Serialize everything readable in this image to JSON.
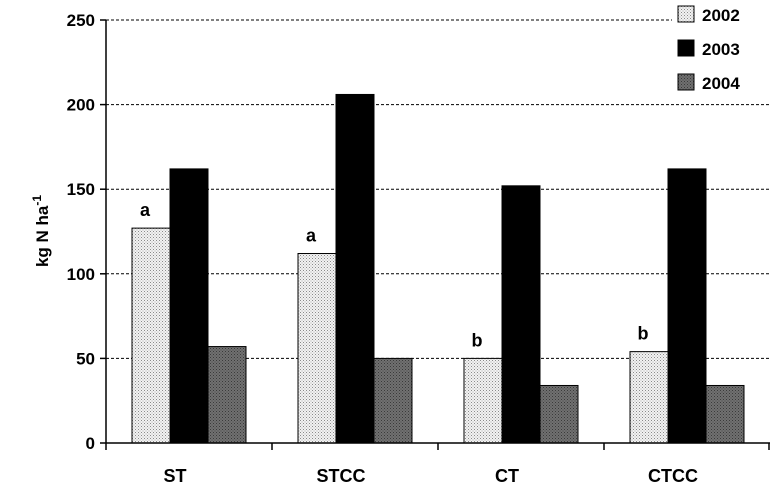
{
  "chart_data": {
    "type": "bar",
    "categories": [
      "ST",
      "STCC",
      "CT",
      "CTCC"
    ],
    "series": [
      {
        "name": "2002",
        "values": [
          127,
          112,
          50,
          54
        ],
        "pattern": "dotted-light"
      },
      {
        "name": "2003",
        "values": [
          162,
          206,
          152,
          162
        ],
        "pattern": "solid-black"
      },
      {
        "name": "2004",
        "values": [
          57,
          50,
          34,
          34
        ],
        "pattern": "dotted-dark"
      }
    ],
    "annotations": [
      "a",
      "a",
      "b",
      "b"
    ],
    "ylabel": "kg N ha",
    "ylabel_superscript": "-1",
    "ylim": [
      0,
      250
    ],
    "yticks": [
      "0",
      "50",
      "100",
      "150",
      "200",
      "250"
    ],
    "grid": "horizontal-dashed",
    "legend_placement": "top-right",
    "colors": {
      "s2002": "#e6e6e6",
      "s2003": "#000000",
      "s2004": "#6a6a6a"
    }
  }
}
